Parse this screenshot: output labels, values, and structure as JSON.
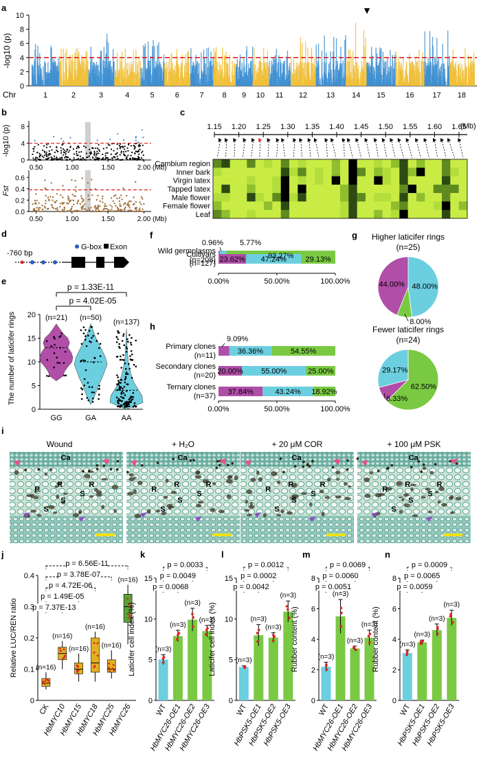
{
  "panels": {
    "a": "a",
    "b": "b",
    "c": "c",
    "d": "d",
    "e": "e",
    "f": "f",
    "g": "g",
    "h": "h",
    "i": "i",
    "j": "j",
    "k": "k",
    "l": "l",
    "m": "m",
    "n": "n"
  },
  "colors": {
    "blue": "#3f8fd1",
    "yellow": "#f0c03a",
    "teal": "#6ccfe0",
    "magenta": "#b04ea8",
    "green": "#7ac943",
    "brown": "#a0703c",
    "red": "#e02020",
    "lime": "#b8e23a",
    "darkgreen": "#2c4a12",
    "black": "#000000"
  },
  "a": {
    "ylabel": "-log10 (p)",
    "yticks": [
      "0",
      "2",
      "4",
      "6",
      "8",
      "10"
    ],
    "ymax": 10,
    "threshold": 4,
    "chr_label": "Chr",
    "chromosomes": [
      "1",
      "2",
      "3",
      "4",
      "5",
      "6",
      "7",
      "8",
      "9",
      "10",
      "11",
      "12",
      "13",
      "14",
      "15",
      "16",
      "17",
      "18"
    ],
    "peak_marker": "▼"
  },
  "b": {
    "top_ylabel": "-log10 (p)",
    "top_yticks": [
      "0",
      "4",
      "8"
    ],
    "top_threshold": 4,
    "bottom_ylabel": "Fst",
    "bottom_yticks": [
      "0.0",
      "0.2",
      "0.4",
      "0.6"
    ],
    "bottom_threshold": 0.38,
    "xticks": [
      "0.50",
      "1.00",
      "1.50",
      "2.00"
    ],
    "xunit": "(Mb)",
    "highlight_mb": 1.22
  },
  "c": {
    "scale_ticks": [
      "1.15",
      "1.20",
      "1.25",
      "1.30",
      "1.35",
      "1.40",
      "1.45",
      "1.50",
      "1.55",
      "1.60",
      "1.65"
    ],
    "unit": "(Mb)",
    "tissues": [
      "Cambium region",
      "Inner bark",
      "Virgin latex",
      "Tapped latex",
      "Male flower",
      "Female flower",
      "Leaf"
    ]
  },
  "d": {
    "promoter": "-760 bp",
    "legend_gbox": "G-box",
    "legend_exon": "Exon"
  },
  "e": {
    "ylabel": "The number of laticifer rings",
    "yticks": [
      "0",
      "5",
      "10",
      "15",
      "20"
    ],
    "groups": [
      "GG",
      "GA",
      "AA"
    ],
    "counts": [
      "(n=21)",
      "(n=50)",
      "(n=137)"
    ],
    "p_values": [
      "p = 1.33E-11",
      "p = 4.02E-05"
    ],
    "medians": [
      13,
      10,
      4
    ]
  },
  "f": {
    "rows": [
      {
        "label": "Wild germplasms",
        "n": "(n=208)",
        "values": [
          0.96,
          5.77,
          93.27
        ],
        "labels": [
          "0.96%",
          "5.77%",
          "93.27%"
        ]
      },
      {
        "label": "Cultivars",
        "n": "(n=127)",
        "values": [
          23.62,
          47.24,
          29.13
        ],
        "labels": [
          "23.62%",
          "47.24%",
          "29.13%"
        ]
      }
    ],
    "xticks": [
      "0.00%",
      "50.00%",
      "100.00%"
    ]
  },
  "g": {
    "pies": [
      {
        "title": "Higher laticifer rings",
        "n": "(n=25)",
        "values": [
          48.0,
          8.0,
          44.0
        ],
        "labels": [
          "48.00%",
          "8.00%",
          "44.00%"
        ]
      },
      {
        "title": "Fewer laticifer rings",
        "n": "(n=24)",
        "values": [
          62.5,
          8.33,
          29.17
        ],
        "labels": [
          "62.50%",
          "8.33%",
          "29.17%"
        ]
      }
    ]
  },
  "h": {
    "rows": [
      {
        "label": "Primary clones",
        "n": "(n=11)",
        "values": [
          9.09,
          36.36,
          54.55
        ],
        "labels": [
          "9.09%",
          "36.36%",
          "54.55%"
        ]
      },
      {
        "label": "Secondary clones",
        "n": "(n=20)",
        "values": [
          20.0,
          55.0,
          25.0
        ],
        "labels": [
          "20.00%",
          "55.00%",
          "25.00%"
        ]
      },
      {
        "label": "Ternary clones",
        "n": "(n=37)",
        "values": [
          37.84,
          43.24,
          18.92
        ],
        "labels": [
          "37.84%",
          "43.24%",
          "18.92%"
        ]
      }
    ],
    "xticks": [
      "0.00%",
      "50.00%",
      "100.00%"
    ]
  },
  "i": {
    "titles": [
      "Wound",
      "+ H₂O",
      "+ 20 μM COR",
      "+ 100 μM PSK"
    ],
    "labels_ca": "Ca",
    "labels_r": "R",
    "labels_s": "S"
  },
  "chart_data": [
    {
      "id": "j",
      "type": "box",
      "ylabel": "Relative LUC/REN ratio",
      "yticks": [
        "0",
        "0.1",
        "0.2",
        "0.3",
        "0.4"
      ],
      "ylim": [
        0,
        0.4
      ],
      "categories": [
        "CK",
        "HbMYC10",
        "HbMYC15",
        "HbMYC18",
        "HbMYC25",
        "HbMYC26"
      ],
      "n": [
        "(n=16)",
        "(n=16)",
        "(n=16)",
        "(n=16)",
        "(n=16)",
        "(n=16)"
      ],
      "medians": [
        0.055,
        0.15,
        0.1,
        0.12,
        0.1,
        0.3
      ],
      "q1": [
        0.045,
        0.13,
        0.085,
        0.09,
        0.09,
        0.25
      ],
      "q3": [
        0.07,
        0.17,
        0.12,
        0.2,
        0.13,
        0.34
      ],
      "mins": [
        0.035,
        0.1,
        0.06,
        0.06,
        0.07,
        0.18
      ],
      "maxs": [
        0.09,
        0.19,
        0.15,
        0.22,
        0.16,
        0.37
      ],
      "p_values": [
        "p = 6.56E-11",
        "p = 3.78E-07",
        "p = 4.72E-06",
        "p = 1.49E-05",
        "p = 7.37E-13"
      ]
    },
    {
      "id": "k",
      "type": "bar",
      "ylabel": "Laticifer cell  index (%)",
      "yticks": [
        "0",
        "5",
        "10",
        "15"
      ],
      "ylim": [
        0,
        15
      ],
      "categories": [
        "WT",
        "HbMYC26-OE1",
        "HbMYC26-OE2",
        "HbMYC26-OE3"
      ],
      "values": [
        5.0,
        7.9,
        9.9,
        8.5
      ],
      "errors": [
        0.6,
        0.7,
        1.4,
        0.7
      ],
      "n": [
        "(n=3)",
        "(n=3)",
        "(n=3)",
        "(n=3)"
      ],
      "p_values": [
        "p = 0.0033",
        "p = 0.0049",
        "p = 0.0068"
      ]
    },
    {
      "id": "l",
      "type": "bar",
      "ylabel": "Laticifer cell  index (%)",
      "yticks": [
        "0",
        "5",
        "10",
        "15"
      ],
      "ylim": [
        0,
        15
      ],
      "categories": [
        "WT",
        "HbPSK5-OE1",
        "HbPSK5-OE2",
        "HbPSK5-OE3"
      ],
      "values": [
        4.1,
        8.0,
        7.7,
        10.9
      ],
      "errors": [
        0.15,
        1.3,
        0.6,
        1.3
      ],
      "n": [
        "(n=3)",
        "(n=3)",
        "(n=3)",
        "(n=3)"
      ],
      "p_values": [
        "p = 0.0012",
        "p = 0.0002",
        "p = 0.0042"
      ]
    },
    {
      "id": "m",
      "type": "bar",
      "ylabel": "Rubber content (%)",
      "yticks": [
        "0",
        "2",
        "4",
        "6",
        "8"
      ],
      "ylim": [
        0,
        8
      ],
      "categories": [
        "WT",
        "HbMYC26-OE1",
        "HbMYC26-OE2",
        "HbMYC26-OE3"
      ],
      "values": [
        2.2,
        5.5,
        3.4,
        4.1
      ],
      "errors": [
        0.3,
        1.1,
        0.15,
        0.5
      ],
      "n": [
        "(n=3)",
        "(n=3)",
        "(n=3)",
        "(n=3)"
      ],
      "p_values": [
        "p = 0.0069",
        "p = 0.0060",
        "p = 0.0051"
      ]
    },
    {
      "id": "n",
      "type": "bar",
      "ylabel": "Rubber content (%)",
      "yticks": [
        "0",
        "2",
        "4",
        "6",
        "8"
      ],
      "ylim": [
        0,
        8
      ],
      "categories": [
        "WT",
        "HbPSK5-OE1",
        "HbPSK5-OE2",
        "HbPSK5-OE3"
      ],
      "values": [
        3.1,
        3.8,
        4.6,
        5.4
      ],
      "errors": [
        0.2,
        0.15,
        0.4,
        0.5
      ],
      "n": [
        "(n=3)",
        "(n=3)",
        "(n=3)",
        "(n=3)"
      ],
      "p_values": [
        "p = 0.0009",
        "p = 0.0065",
        "p = 0.0059"
      ]
    }
  ]
}
